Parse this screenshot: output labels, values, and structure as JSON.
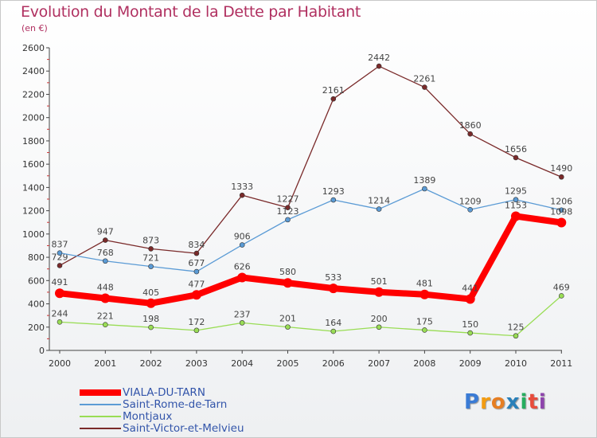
{
  "title": "Evolution du Montant de la Dette par Habitant",
  "subtitle": "(en €)",
  "chart_data": {
    "type": "line",
    "title": "Evolution du Montant de la Dette par Habitant",
    "subtitle": "(en €)",
    "xlabel": "",
    "ylabel": "",
    "x": [
      "2000",
      "2001",
      "2002",
      "2003",
      "2004",
      "2005",
      "2006",
      "2007",
      "2008",
      "2009",
      "2010",
      "2011"
    ],
    "ylim": [
      0,
      2600
    ],
    "yticks": [
      0,
      200,
      400,
      600,
      800,
      1000,
      1200,
      1400,
      1600,
      1800,
      2000,
      2200,
      2400,
      2600
    ],
    "grid": false,
    "legend_position": "bottom-left",
    "series": [
      {
        "name": "VIALA-DU-TARN",
        "color": "#ff0000",
        "values": [
          491,
          448,
          405,
          477,
          626,
          580,
          533,
          501,
          481,
          441,
          1153,
          1098
        ]
      },
      {
        "name": "Saint-Rome-de-Tarn",
        "color": "#5b9bd5",
        "values": [
          837,
          768,
          721,
          677,
          906,
          1123,
          1293,
          1214,
          1389,
          1209,
          1295,
          1206
        ]
      },
      {
        "name": "Montjaux",
        "color": "#99dd55",
        "values": [
          244,
          221,
          198,
          172,
          237,
          201,
          164,
          200,
          175,
          150,
          125,
          469
        ]
      },
      {
        "name": "Saint-Victor-et-Melvieu",
        "color": "#7a2a2a",
        "values": [
          729,
          947,
          873,
          834,
          1333,
          1227,
          2161,
          2442,
          2261,
          1860,
          1656,
          1490
        ]
      }
    ]
  },
  "logo": {
    "letters": [
      "P",
      "r",
      "o",
      "x",
      "i",
      "t",
      "i"
    ],
    "colors": [
      "#3a7bd5",
      "#f39c12",
      "#e67e22",
      "#2980b9",
      "#27ae60",
      "#e74c3c",
      "#8e44ad"
    ]
  }
}
